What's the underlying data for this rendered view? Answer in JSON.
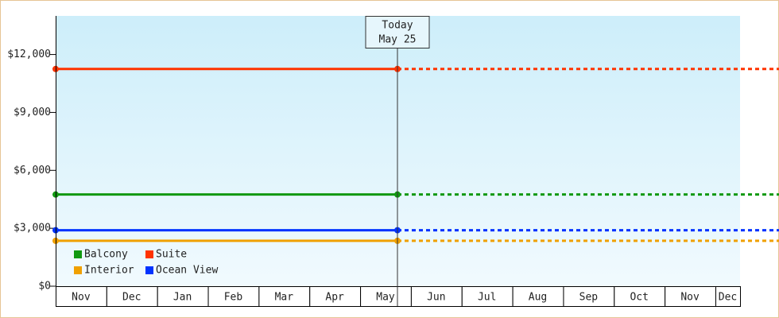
{
  "chart_data": {
    "type": "line",
    "categories": [
      "Nov",
      "Dec",
      "Jan",
      "Feb",
      "Mar",
      "Apr",
      "May",
      "Jun",
      "Jul",
      "Aug",
      "Sep",
      "Oct",
      "Nov",
      "Dec"
    ],
    "series": [
      {
        "name": "Balcony",
        "color": "#119911",
        "value": 4750
      },
      {
        "name": "Suite",
        "color": "#ff3300",
        "value": 11250
      },
      {
        "name": "Interior",
        "color": "#f0a000",
        "value": 2350
      },
      {
        "name": "Ocean View",
        "color": "#0033ff",
        "value": 2900
      }
    ],
    "ylim": [
      0,
      14000
    ],
    "yticks": [
      {
        "value": 0,
        "label": "$0"
      },
      {
        "value": 3000,
        "label": "$3,000"
      },
      {
        "value": 6000,
        "label": "$6,000"
      },
      {
        "value": 9000,
        "label": "$9,000"
      },
      {
        "value": 12000,
        "label": "$12,000"
      }
    ],
    "annotation": {
      "lines": [
        "Today",
        "May 25"
      ]
    },
    "legend": "bottom-left"
  }
}
